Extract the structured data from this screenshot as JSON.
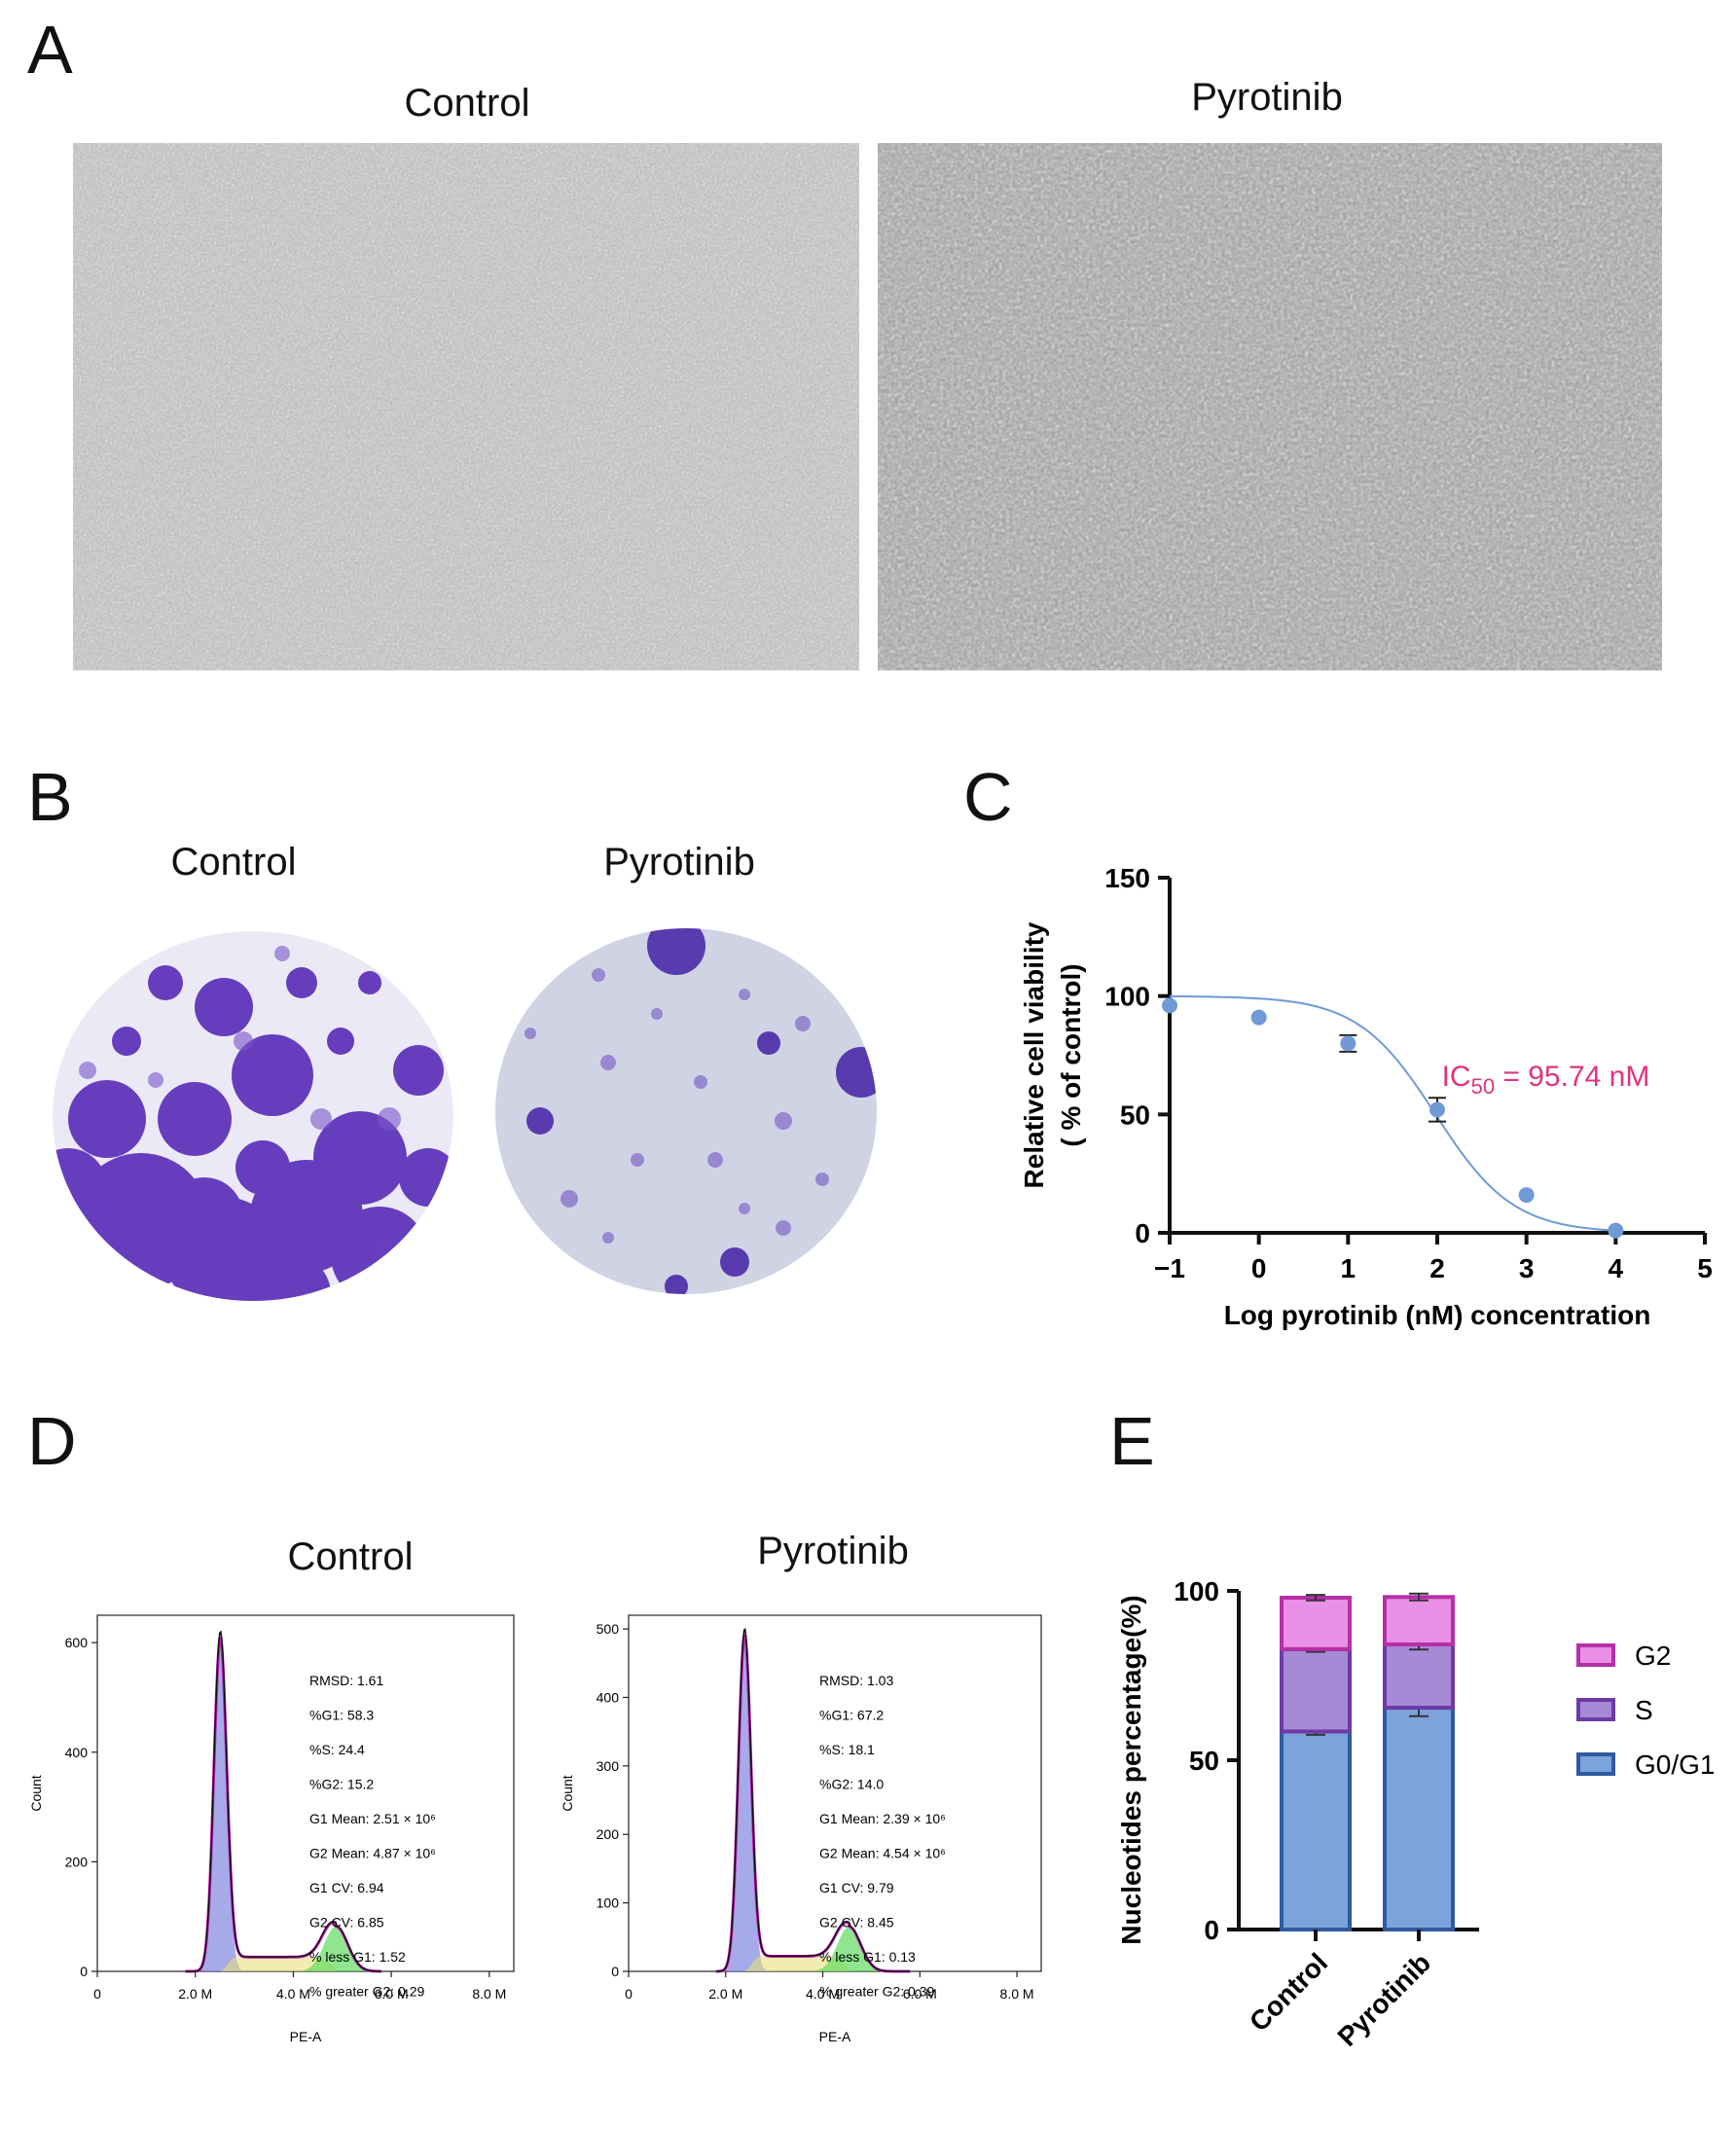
{
  "panels": {
    "A": {
      "letter": "A",
      "left_title": "Control",
      "right_title": "Pyrotinib"
    },
    "B": {
      "letter": "B",
      "left_title": "Control",
      "right_title": "Pyrotinib"
    },
    "C": {
      "letter": "C"
    },
    "D": {
      "letter": "D",
      "left_title": "Control",
      "right_title": "Pyrotinib"
    },
    "E": {
      "letter": "E"
    }
  },
  "colors": {
    "dish_stain": "#5b2fb8",
    "dish_light": "#dfe0ee",
    "curve": "#6f9ad6",
    "ic50_text": "#e0337f",
    "g2": "#ea8fe6",
    "g2_border": "#b52fa6",
    "s": "#a68ad6",
    "s_border": "#6d3aa8",
    "g0g1": "#7ca3db",
    "g0g1_border": "#2f5a9e"
  },
  "chart_data": [
    {
      "id": "C",
      "type": "scatter",
      "title": "",
      "xlabel": "Log pyrotinib (nM) concentration",
      "ylabel_line1": "Relative cell viability",
      "ylabel_line2": "( % of control)",
      "xlim": [
        -1,
        5
      ],
      "ylim": [
        0,
        150
      ],
      "xticks": [
        "−1",
        "0",
        "1",
        "2",
        "3",
        "4",
        "5"
      ],
      "yticks": [
        "0",
        "50",
        "100",
        "150"
      ],
      "series": [
        {
          "x": [
            -1,
            0,
            1,
            2,
            3,
            4
          ],
          "y": [
            96,
            91,
            80,
            52,
            16,
            1
          ],
          "err": [
            0,
            0,
            3.5,
            5,
            0,
            0
          ]
        }
      ],
      "fit": {
        "top": 100,
        "bottom": 0,
        "logIC50": 1.981,
        "hill": 1
      },
      "annotation": {
        "prefix": "IC",
        "subscript": "50",
        "suffix": " = 95.74 nM"
      }
    },
    {
      "id": "D-control",
      "type": "area",
      "title": "Control",
      "xlabel": "PE-A",
      "ylabel": "Count",
      "xticks": [
        "0",
        "2.0 M",
        "4.0 M",
        "6.0 M",
        "8.0 M"
      ],
      "xtick_values": [
        0,
        2,
        4,
        6,
        8
      ],
      "xlim": [
        0,
        8.5
      ],
      "ylim": [
        0,
        650
      ],
      "yticks": [
        "0",
        "200",
        "400",
        "600"
      ],
      "ytick_values": [
        0,
        200,
        400,
        600
      ],
      "peaks": {
        "g1_mean": 2.51,
        "g1_height": 608,
        "g2_mean": 4.87,
        "g2_height": 82,
        "s_level": 26
      },
      "stats": [
        "RMSD:   1.61",
        "%G1: 58.3",
        "%S: 24.4",
        "%G2: 15.2",
        "G1 Mean: 2.51 × 10⁶",
        "G2 Mean: 4.87 × 10⁶",
        "G1 CV: 6.94",
        "G2 CV: 6.85",
        "% less G1: 1.52",
        "% greater G2:  0.29"
      ]
    },
    {
      "id": "D-pyrotinib",
      "type": "area",
      "title": "Pyrotinib",
      "xlabel": "PE-A",
      "ylabel": "Count",
      "xticks": [
        "0",
        "2.0 M",
        "4.0 M",
        "6.0 M",
        "8.0 M"
      ],
      "xtick_values": [
        0,
        2,
        4,
        6,
        8
      ],
      "xlim": [
        0,
        8.5
      ],
      "ylim": [
        0,
        520
      ],
      "yticks": [
        "0",
        "100",
        "200",
        "300",
        "400",
        "500"
      ],
      "ytick_values": [
        0,
        100,
        200,
        300,
        400,
        500
      ],
      "peaks": {
        "g1_mean": 2.39,
        "g1_height": 490,
        "g2_mean": 4.54,
        "g2_height": 65,
        "s_level": 22
      },
      "stats": [
        "RMSD:   1.03",
        "%G1: 67.2",
        "%S: 18.1",
        "%G2: 14.0",
        "G1 Mean: 2.39 × 10⁶",
        "G2 Mean: 4.54 × 10⁶",
        "G1 CV: 9.79",
        "G2 CV: 8.45",
        "% less G1: 0.13",
        "% greater G2:  0.39"
      ]
    },
    {
      "id": "E",
      "type": "bar",
      "stacked": true,
      "categories": [
        "Control",
        "Pyrotinib"
      ],
      "ylabel": "Nucleotides percentage(%)",
      "ylim": [
        0,
        100
      ],
      "yticks": [
        "0",
        "50",
        "100"
      ],
      "series": [
        {
          "name": "G0/G1",
          "values": [
            58.5,
            65.5
          ],
          "err": [
            1.0,
            2.5
          ]
        },
        {
          "name": "S",
          "values": [
            24.3,
            18.7
          ],
          "err": [
            0.8,
            1.5
          ]
        },
        {
          "name": "G2",
          "values": [
            15.2,
            14.0
          ],
          "err": [
            0.8,
            1.0
          ]
        }
      ],
      "legend_order": [
        "G2",
        "S",
        "G0/G1"
      ],
      "legend_position": "right"
    }
  ]
}
